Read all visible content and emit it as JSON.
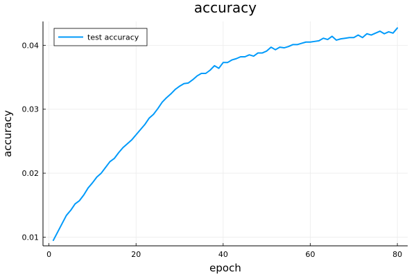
{
  "chart_data": {
    "type": "line",
    "title": "accuracy",
    "xlabel": "epoch",
    "ylabel": "accuracy",
    "xlim": [
      -1.37,
      82.37
    ],
    "ylim": [
      0.00864,
      0.04372
    ],
    "xticks": [
      0,
      20,
      40,
      60,
      80
    ],
    "xtick_labels": [
      "0",
      "20",
      "40",
      "60",
      "80"
    ],
    "yticks": [
      0.01,
      0.02,
      0.03,
      0.04
    ],
    "ytick_labels": [
      "0.01",
      "0.02",
      "0.03",
      "0.04"
    ],
    "grid": true,
    "legend_position": "top-left",
    "colors": {
      "series": "#009AFA",
      "grid": "#EBEBEB",
      "axis": "#000000"
    },
    "series": [
      {
        "name": "test accuracy",
        "x": [
          1,
          2,
          3,
          4,
          5,
          6,
          7,
          8,
          9,
          10,
          11,
          12,
          13,
          14,
          15,
          16,
          17,
          18,
          19,
          20,
          21,
          22,
          23,
          24,
          25,
          26,
          27,
          28,
          29,
          30,
          31,
          32,
          33,
          34,
          35,
          36,
          37,
          38,
          39,
          40,
          41,
          42,
          43,
          44,
          45,
          46,
          47,
          48,
          49,
          50,
          51,
          52,
          53,
          54,
          55,
          56,
          57,
          58,
          59,
          60,
          61,
          62,
          63,
          64,
          65,
          66,
          67,
          68,
          69,
          70,
          71,
          72,
          73,
          74,
          75,
          76,
          77,
          78,
          79,
          80
        ],
        "y": [
          0.0095,
          0.0108,
          0.0121,
          0.0134,
          0.0142,
          0.0152,
          0.0157,
          0.0166,
          0.0177,
          0.0185,
          0.0194,
          0.02,
          0.0209,
          0.0218,
          0.0223,
          0.0232,
          0.024,
          0.0246,
          0.0252,
          0.026,
          0.0268,
          0.0276,
          0.0286,
          0.0292,
          0.0301,
          0.0311,
          0.0318,
          0.0324,
          0.0331,
          0.0336,
          0.034,
          0.0341,
          0.0346,
          0.0352,
          0.0356,
          0.0356,
          0.0361,
          0.0368,
          0.0364,
          0.0373,
          0.0373,
          0.0377,
          0.0379,
          0.0382,
          0.0382,
          0.0385,
          0.0383,
          0.0388,
          0.0388,
          0.0391,
          0.0397,
          0.0393,
          0.0397,
          0.0396,
          0.0398,
          0.0401,
          0.0401,
          0.0403,
          0.0405,
          0.0405,
          0.0406,
          0.0407,
          0.0411,
          0.0409,
          0.0414,
          0.0408,
          0.041,
          0.0411,
          0.0412,
          0.0412,
          0.0416,
          0.0412,
          0.0418,
          0.0416,
          0.0419,
          0.0422,
          0.0418,
          0.0421,
          0.0419,
          0.0427
        ]
      }
    ]
  }
}
